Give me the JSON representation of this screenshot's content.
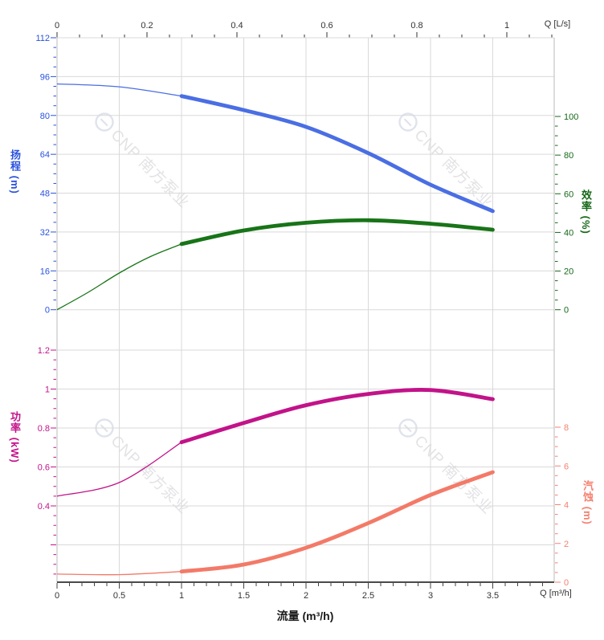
{
  "page": {
    "background": "#ffffff"
  },
  "chart_data": {
    "type": "line",
    "title": "",
    "watermark_text": "CNP 南方泵业",
    "x_axis_top": {
      "unit_label": "Q [L/s]",
      "ticks": [
        "0",
        "0.2",
        "0.4",
        "0.6",
        "0.8",
        "1"
      ],
      "minor_step": 0.05,
      "range": [
        0,
        1.1
      ]
    },
    "x_axis_bottom": {
      "title": "流量 (m³/h)",
      "unit_label": "Q [m³/h]",
      "ticks": [
        "0",
        "0.5",
        "1",
        "1.5",
        "2",
        "2.5",
        "3",
        "3.5"
      ],
      "minor_step": 0.1,
      "range": [
        0,
        3.9
      ]
    },
    "y_axes": [
      {
        "id": "head",
        "title": "扬程 (m)",
        "side": "left",
        "label_color": "#2a52de",
        "curve_color": "#4a6ee3",
        "ticks": [
          "0",
          "16",
          "32",
          "48",
          "64",
          "80",
          "96",
          "112"
        ],
        "minor_step": 4,
        "range": [
          0,
          112
        ]
      },
      {
        "id": "efficiency",
        "title": "效率 (%)",
        "side": "right",
        "label_color": "#156818",
        "curve_color": "#187418",
        "ticks": [
          "0",
          "20",
          "40",
          "60",
          "80",
          "100"
        ],
        "minor_step": 5,
        "range": [
          0,
          100
        ]
      },
      {
        "id": "power",
        "title": "功率 (kW)",
        "side": "left",
        "label_color": "#c3138b",
        "curve_color": "#c21389",
        "ticks": [
          "0.4",
          "0.6",
          "0.8",
          "1",
          "1.2"
        ],
        "minor_step": 0.05,
        "range": [
          0.05,
          1.2
        ]
      },
      {
        "id": "npsh",
        "title": "汽蚀 (m)",
        "side": "right",
        "label_color": "#f58170",
        "curve_color": "#f37a68",
        "ticks": [
          "0",
          "2",
          "4",
          "6",
          "8"
        ],
        "minor_step": 0.5,
        "range": [
          0,
          8
        ]
      }
    ],
    "series": [
      {
        "id": "head-curve",
        "axis": "head",
        "name": "扬程",
        "thin_points": [
          [
            0,
            93
          ],
          [
            0.5,
            91.8
          ],
          [
            1,
            88
          ]
        ],
        "thick_points": [
          [
            1,
            88
          ],
          [
            1.5,
            82.2
          ],
          [
            2,
            75.3
          ],
          [
            2.5,
            64.5
          ],
          [
            3,
            51.5
          ],
          [
            3.5,
            40.6
          ]
        ]
      },
      {
        "id": "efficiency-curve",
        "axis": "efficiency",
        "name": "效率",
        "thin_points": [
          [
            0,
            0
          ],
          [
            0.25,
            9
          ],
          [
            0.5,
            19
          ],
          [
            0.75,
            27.5
          ],
          [
            1,
            34
          ]
        ],
        "thick_points": [
          [
            1,
            34
          ],
          [
            1.5,
            41
          ],
          [
            2,
            45
          ],
          [
            2.5,
            46.3
          ],
          [
            3,
            44.5
          ],
          [
            3.5,
            41.4
          ]
        ]
      },
      {
        "id": "power-curve",
        "axis": "power",
        "name": "功率",
        "thin_points": [
          [
            0,
            0.45
          ],
          [
            0.5,
            0.52
          ],
          [
            1,
            0.727
          ]
        ],
        "thick_points": [
          [
            1,
            0.727
          ],
          [
            1.5,
            0.826
          ],
          [
            2,
            0.917
          ],
          [
            2.5,
            0.975
          ],
          [
            3,
            0.995
          ],
          [
            3.5,
            0.948
          ]
        ]
      },
      {
        "id": "npsh-curve",
        "axis": "npsh",
        "name": "汽蚀",
        "thin_points": [
          [
            0,
            0.42
          ],
          [
            0.5,
            0.39
          ],
          [
            1,
            0.55
          ]
        ],
        "thick_points": [
          [
            1,
            0.55
          ],
          [
            1.5,
            0.91
          ],
          [
            2,
            1.78
          ],
          [
            2.5,
            3.05
          ],
          [
            3,
            4.5
          ],
          [
            3.5,
            5.68
          ]
        ]
      }
    ],
    "grid": {
      "vertical_at_m3h": [
        0.5,
        1,
        1.5,
        2,
        2.5,
        3,
        3.5
      ],
      "horizontal_head_values": [
        0,
        16,
        32,
        48,
        64,
        80,
        96,
        112
      ],
      "horizontal_power_values": [
        0.2,
        0.4,
        0.6,
        0.8,
        1,
        1.2
      ]
    },
    "colors": {
      "grid": "#d9d9d9",
      "plot_border": "#bbbbbb",
      "bottom_axis": "#4a4a4a",
      "x_tick_text": "#333333",
      "watermark": "#e3e3e6",
      "watermark_logo": "#dfe3ec"
    }
  }
}
